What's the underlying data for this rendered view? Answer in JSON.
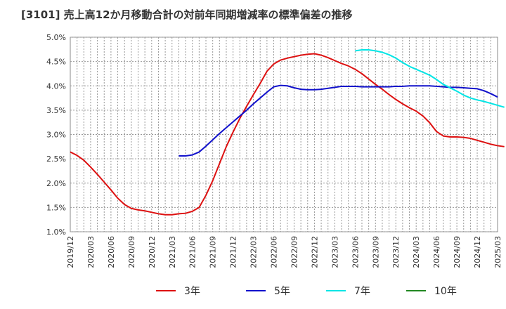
{
  "title": "[3101]  売上高12か月移動合計の対前年同期増減率の標準偏差の推移",
  "chart_data": {
    "type": "line",
    "title": "[3101]  売上高12か月移動合計の対前年同期増減率の標準偏差の推移",
    "xlabel": "",
    "ylabel": "",
    "ylim": [
      1.0,
      5.0
    ],
    "grid": true,
    "legend_position": "bottom",
    "y_ticks": [
      "5.0%",
      "4.5%",
      "4.0%",
      "3.5%",
      "3.0%",
      "2.5%",
      "2.0%",
      "1.5%",
      "1.0%"
    ],
    "y_tick_values": [
      5.0,
      4.5,
      4.0,
      3.5,
      3.0,
      2.5,
      2.0,
      1.5,
      1.0
    ],
    "x_ticks": [
      "2019/12",
      "2020/03",
      "2020/06",
      "2020/09",
      "2020/12",
      "2021/03",
      "2021/06",
      "2021/09",
      "2021/12",
      "2022/03",
      "2022/06",
      "2022/09",
      "2022/12",
      "2023/03",
      "2023/06",
      "2023/09",
      "2023/12",
      "2024/03",
      "2024/06",
      "2024/09",
      "2024/12",
      "2025/03"
    ],
    "series": [
      {
        "name": "3年",
        "color": "#dd1111",
        "points": [
          [
            "2019/12",
            2.64
          ],
          [
            "2020/01",
            2.57
          ],
          [
            "2020/02",
            2.47
          ],
          [
            "2020/03",
            2.33
          ],
          [
            "2020/04",
            2.18
          ],
          [
            "2020/05",
            2.02
          ],
          [
            "2020/06",
            1.86
          ],
          [
            "2020/07",
            1.69
          ],
          [
            "2020/08",
            1.56
          ],
          [
            "2020/09",
            1.48
          ],
          [
            "2020/10",
            1.45
          ],
          [
            "2020/11",
            1.43
          ],
          [
            "2020/12",
            1.4
          ],
          [
            "2021/01",
            1.37
          ],
          [
            "2021/02",
            1.35
          ],
          [
            "2021/03",
            1.35
          ],
          [
            "2021/04",
            1.37
          ],
          [
            "2021/05",
            1.38
          ],
          [
            "2021/06",
            1.42
          ],
          [
            "2021/07",
            1.5
          ],
          [
            "2021/08",
            1.75
          ],
          [
            "2021/09",
            2.05
          ],
          [
            "2021/10",
            2.4
          ],
          [
            "2021/11",
            2.75
          ],
          [
            "2021/12",
            3.05
          ],
          [
            "2022/01",
            3.33
          ],
          [
            "2022/02",
            3.58
          ],
          [
            "2022/03",
            3.82
          ],
          [
            "2022/04",
            4.05
          ],
          [
            "2022/05",
            4.3
          ],
          [
            "2022/06",
            4.45
          ],
          [
            "2022/07",
            4.53
          ],
          [
            "2022/08",
            4.57
          ],
          [
            "2022/09",
            4.6
          ],
          [
            "2022/10",
            4.63
          ],
          [
            "2022/11",
            4.65
          ],
          [
            "2022/12",
            4.66
          ],
          [
            "2023/01",
            4.63
          ],
          [
            "2023/02",
            4.58
          ],
          [
            "2023/03",
            4.52
          ],
          [
            "2023/04",
            4.46
          ],
          [
            "2023/05",
            4.41
          ],
          [
            "2023/06",
            4.34
          ],
          [
            "2023/07",
            4.25
          ],
          [
            "2023/08",
            4.14
          ],
          [
            "2023/09",
            4.03
          ],
          [
            "2023/10",
            3.93
          ],
          [
            "2023/11",
            3.82
          ],
          [
            "2023/12",
            3.72
          ],
          [
            "2024/01",
            3.63
          ],
          [
            "2024/02",
            3.55
          ],
          [
            "2024/03",
            3.48
          ],
          [
            "2024/04",
            3.38
          ],
          [
            "2024/05",
            3.24
          ],
          [
            "2024/06",
            3.06
          ],
          [
            "2024/07",
            2.97
          ],
          [
            "2024/08",
            2.95
          ],
          [
            "2024/09",
            2.95
          ],
          [
            "2024/10",
            2.94
          ],
          [
            "2024/11",
            2.92
          ],
          [
            "2024/12",
            2.88
          ],
          [
            "2025/01",
            2.84
          ],
          [
            "2025/02",
            2.8
          ],
          [
            "2025/03",
            2.77
          ],
          [
            "2025/04",
            2.75
          ]
        ]
      },
      {
        "name": "5年",
        "color": "#1111cc",
        "points": [
          [
            "2021/04",
            2.56
          ],
          [
            "2021/05",
            2.56
          ],
          [
            "2021/06",
            2.58
          ],
          [
            "2021/07",
            2.64
          ],
          [
            "2021/08",
            2.76
          ],
          [
            "2021/09",
            2.89
          ],
          [
            "2021/10",
            3.02
          ],
          [
            "2021/11",
            3.14
          ],
          [
            "2021/12",
            3.26
          ],
          [
            "2022/01",
            3.38
          ],
          [
            "2022/02",
            3.5
          ],
          [
            "2022/03",
            3.63
          ],
          [
            "2022/04",
            3.75
          ],
          [
            "2022/05",
            3.87
          ],
          [
            "2022/06",
            3.98
          ],
          [
            "2022/07",
            4.01
          ],
          [
            "2022/08",
            4.0
          ],
          [
            "2022/09",
            3.96
          ],
          [
            "2022/10",
            3.93
          ],
          [
            "2022/11",
            3.92
          ],
          [
            "2022/12",
            3.92
          ],
          [
            "2023/01",
            3.93
          ],
          [
            "2023/02",
            3.95
          ],
          [
            "2023/03",
            3.97
          ],
          [
            "2023/04",
            3.99
          ],
          [
            "2023/05",
            3.99
          ],
          [
            "2023/06",
            3.99
          ],
          [
            "2023/07",
            3.98
          ],
          [
            "2023/08",
            3.98
          ],
          [
            "2023/09",
            3.98
          ],
          [
            "2023/10",
            3.98
          ],
          [
            "2023/11",
            3.98
          ],
          [
            "2023/12",
            3.99
          ],
          [
            "2024/01",
            3.99
          ],
          [
            "2024/02",
            4.0
          ],
          [
            "2024/03",
            4.0
          ],
          [
            "2024/04",
            4.0
          ],
          [
            "2024/05",
            4.0
          ],
          [
            "2024/06",
            3.99
          ],
          [
            "2024/07",
            3.98
          ],
          [
            "2024/08",
            3.97
          ],
          [
            "2024/09",
            3.97
          ],
          [
            "2024/10",
            3.96
          ],
          [
            "2024/11",
            3.95
          ],
          [
            "2024/12",
            3.94
          ],
          [
            "2025/01",
            3.9
          ],
          [
            "2025/02",
            3.84
          ],
          [
            "2025/03",
            3.77
          ]
        ]
      },
      {
        "name": "7年",
        "color": "#00e5e5",
        "points": [
          [
            "2023/06",
            4.72
          ],
          [
            "2023/07",
            4.74
          ],
          [
            "2023/08",
            4.74
          ],
          [
            "2023/09",
            4.72
          ],
          [
            "2023/10",
            4.69
          ],
          [
            "2023/11",
            4.64
          ],
          [
            "2023/12",
            4.57
          ],
          [
            "2024/01",
            4.48
          ],
          [
            "2024/02",
            4.4
          ],
          [
            "2024/03",
            4.34
          ],
          [
            "2024/04",
            4.28
          ],
          [
            "2024/05",
            4.22
          ],
          [
            "2024/06",
            4.13
          ],
          [
            "2024/07",
            4.03
          ],
          [
            "2024/08",
            3.96
          ],
          [
            "2024/09",
            3.89
          ],
          [
            "2024/10",
            3.81
          ],
          [
            "2024/11",
            3.75
          ],
          [
            "2024/12",
            3.71
          ],
          [
            "2025/01",
            3.68
          ],
          [
            "2025/02",
            3.64
          ],
          [
            "2025/03",
            3.6
          ],
          [
            "2025/04",
            3.56
          ]
        ]
      },
      {
        "name": "10年",
        "color": "#228822",
        "points": []
      }
    ]
  }
}
